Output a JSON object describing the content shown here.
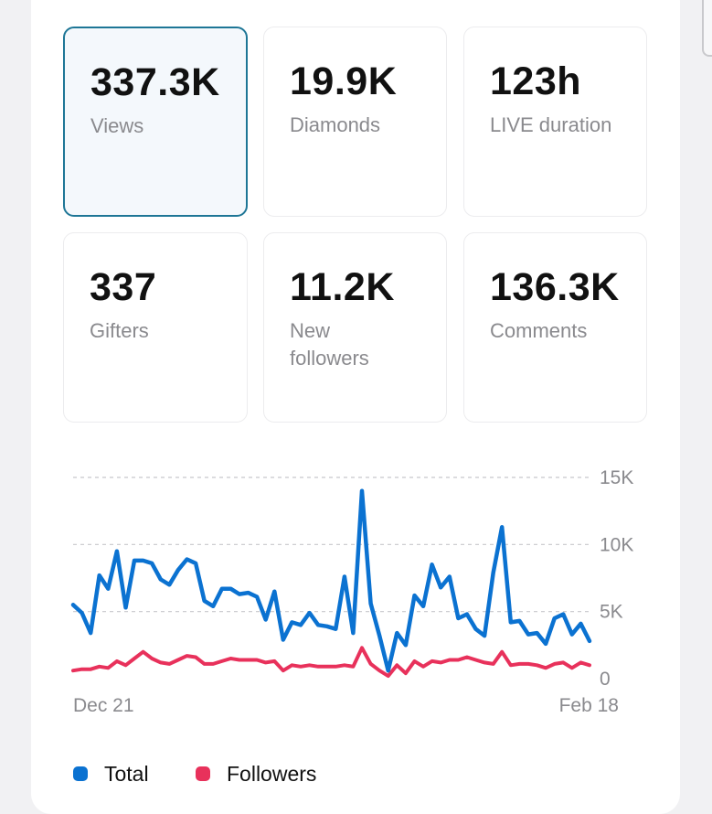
{
  "metrics": [
    {
      "value": "337.3K",
      "label": "Views",
      "selected": true
    },
    {
      "value": "19.9K",
      "label": "Diamonds",
      "selected": false
    },
    {
      "value": "123h",
      "label": "LIVE duration",
      "selected": false
    },
    {
      "value": "337",
      "label": "Gifters",
      "selected": false
    },
    {
      "value": "11.2K",
      "label": "New followers",
      "selected": false
    },
    {
      "value": "136.3K",
      "label": "Comments",
      "selected": false
    }
  ],
  "chart_data": {
    "type": "line",
    "x_start_label": "Dec 21",
    "x_end_label": "Feb 18",
    "ylim": [
      0,
      15000
    ],
    "y_ticks": [
      0,
      5000,
      10000,
      15000
    ],
    "y_tick_labels": [
      "0",
      "5K",
      "10K",
      "15K"
    ],
    "grid": true,
    "legend_position": "bottom-left",
    "series": [
      {
        "name": "Total",
        "color": "#0b72d1",
        "values": [
          5500,
          4900,
          3400,
          7700,
          6700,
          9500,
          5300,
          8800,
          8800,
          8600,
          7400,
          7000,
          8100,
          8900,
          8600,
          5800,
          5400,
          6700,
          6700,
          6300,
          6400,
          6100,
          4400,
          6500,
          2900,
          4200,
          4000,
          4900,
          4000,
          3900,
          3700,
          7600,
          3400,
          14000,
          5600,
          3200,
          600,
          3400,
          2500,
          6200,
          5400,
          8500,
          6800,
          7600,
          4500,
          4800,
          3700,
          3200,
          7900,
          11300,
          4200,
          4300,
          3300,
          3400,
          2600,
          4500,
          4800,
          3300,
          4100,
          2800
        ]
      },
      {
        "name": "Followers",
        "color": "#e8315b",
        "values": [
          600,
          700,
          700,
          900,
          800,
          1300,
          1000,
          1500,
          2000,
          1500,
          1200,
          1100,
          1400,
          1700,
          1600,
          1100,
          1100,
          1300,
          1500,
          1400,
          1400,
          1400,
          1200,
          1300,
          600,
          1000,
          900,
          1000,
          900,
          900,
          900,
          1000,
          900,
          2300,
          1100,
          600,
          200,
          1000,
          400,
          1300,
          900,
          1300,
          1200,
          1400,
          1400,
          1600,
          1400,
          1200,
          1100,
          2000,
          1000,
          1100,
          1100,
          1000,
          800,
          1100,
          1200,
          800,
          1200,
          1000
        ]
      }
    ]
  }
}
